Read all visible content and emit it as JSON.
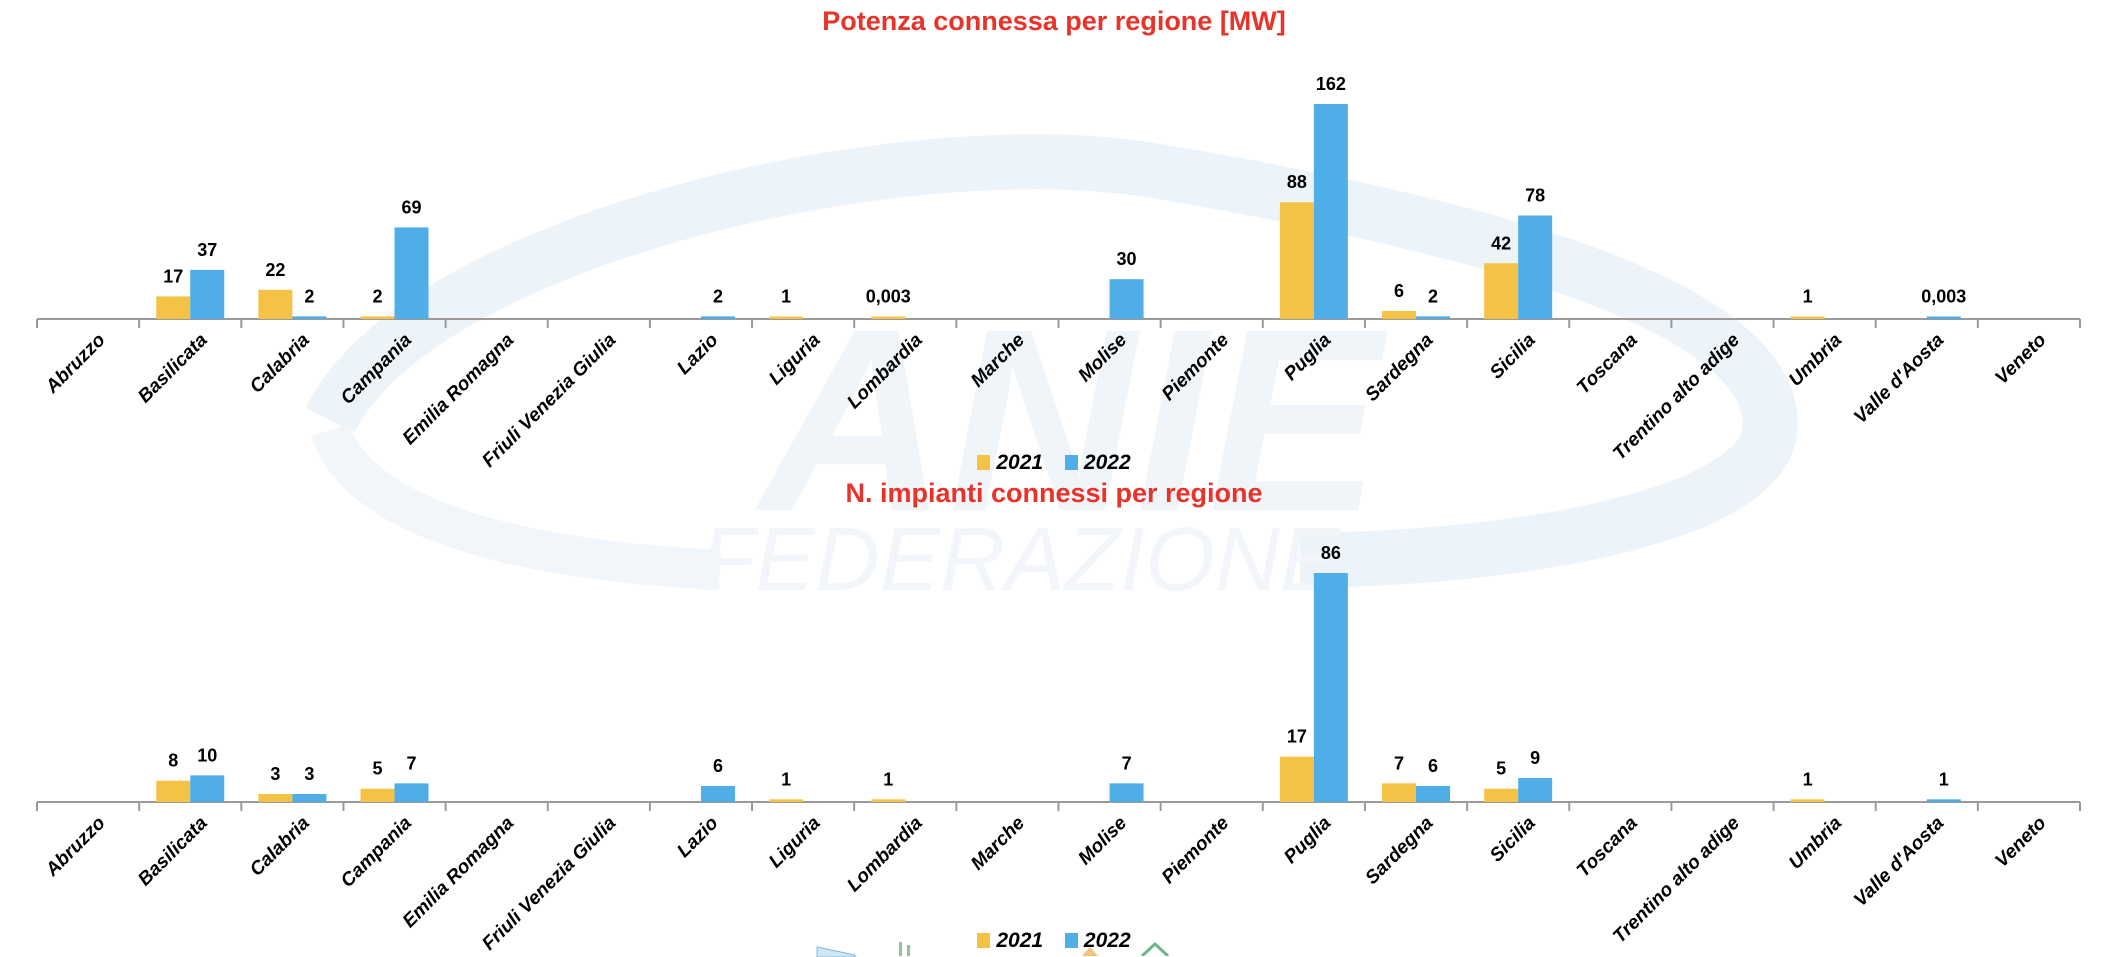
{
  "colors": {
    "series_2021": "#F4C244",
    "series_2022": "#4FAEE8",
    "title": "#E8332A",
    "axis": "#9A9A9A"
  },
  "chart_data": [
    {
      "type": "bar",
      "title": "Potenza connessa per regione [MW]",
      "xlabel": "",
      "ylabel": "",
      "ylim": [
        0,
        170
      ],
      "grid": false,
      "legend_position": "bottom",
      "categories": [
        "Abruzzo",
        "Basilicata",
        "Calabria",
        "Campania",
        "Emilia Romagna",
        "Friuli Venezia Giulia",
        "Lazio",
        "Liguria",
        "Lombardia",
        "Marche",
        "Molise",
        "Piemonte",
        "Puglia",
        "Sardegna",
        "Sicilia",
        "Toscana",
        "Trentino alto adige",
        "Umbria",
        "Valle d'Aosta",
        "Veneto"
      ],
      "series": [
        {
          "name": "2021",
          "values": [
            null,
            17,
            22,
            2,
            null,
            null,
            null,
            1,
            0.003,
            null,
            null,
            null,
            88,
            6,
            42,
            null,
            null,
            1,
            null,
            null
          ],
          "labels": [
            "",
            "17",
            "22",
            "2",
            "",
            "",
            "",
            "1",
            "0,003",
            "",
            "",
            "",
            "88",
            "6",
            "42",
            "",
            "",
            "1",
            "",
            ""
          ]
        },
        {
          "name": "2022",
          "values": [
            null,
            37,
            2,
            69,
            null,
            null,
            2,
            null,
            null,
            null,
            30,
            null,
            162,
            2,
            78,
            null,
            null,
            null,
            0.003,
            null
          ],
          "labels": [
            "",
            "37",
            "2",
            "69",
            "",
            "",
            "2",
            "",
            "",
            "",
            "30",
            "",
            "162",
            "2",
            "78",
            "",
            "",
            "",
            "0,003",
            ""
          ]
        }
      ]
    },
    {
      "type": "bar",
      "title": "N. impianti connessi per regione",
      "xlabel": "",
      "ylabel": "",
      "ylim": [
        0,
        90
      ],
      "grid": false,
      "legend_position": "bottom",
      "categories": [
        "Abruzzo",
        "Basilicata",
        "Calabria",
        "Campania",
        "Emilia Romagna",
        "Friuli Venezia Giulia",
        "Lazio",
        "Liguria",
        "Lombardia",
        "Marche",
        "Molise",
        "Piemonte",
        "Puglia",
        "Sardegna",
        "Sicilia",
        "Toscana",
        "Trentino alto adige",
        "Umbria",
        "Valle d'Aosta",
        "Veneto"
      ],
      "series": [
        {
          "name": "2021",
          "values": [
            null,
            8,
            3,
            5,
            null,
            null,
            null,
            1,
            1,
            null,
            null,
            null,
            17,
            7,
            5,
            null,
            null,
            1,
            null,
            null
          ],
          "labels": [
            "",
            "8",
            "3",
            "5",
            "",
            "",
            "",
            "1",
            "1",
            "",
            "",
            "",
            "17",
            "7",
            "5",
            "",
            "",
            "1",
            "",
            ""
          ]
        },
        {
          "name": "2022",
          "values": [
            null,
            10,
            3,
            7,
            null,
            null,
            6,
            null,
            null,
            null,
            7,
            null,
            86,
            6,
            9,
            null,
            null,
            null,
            1,
            null
          ],
          "labels": [
            "",
            "10",
            "3",
            "7",
            "",
            "",
            "6",
            "",
            "",
            "",
            "7",
            "",
            "86",
            "6",
            "9",
            "",
            "",
            "",
            "1",
            ""
          ]
        }
      ]
    }
  ],
  "legend": {
    "items": [
      {
        "label": "2021"
      },
      {
        "label": "2022"
      }
    ]
  }
}
